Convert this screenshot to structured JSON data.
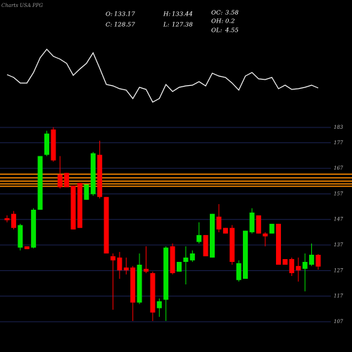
{
  "chart_data": {
    "type": "candlestick",
    "title": "Charts USA PPG",
    "info": [
      {
        "label": "O:",
        "value": 133.17
      },
      {
        "label": "C:",
        "value": 128.57
      },
      {
        "label": "H:",
        "value": 133.44
      },
      {
        "label": "L:",
        "value": 127.38
      },
      {
        "label": "OC:",
        "value": 3.58
      },
      {
        "label": "OH:",
        "value": 0.2
      },
      {
        "label": "OL:",
        "value": 4.55
      }
    ],
    "ylim": [
      107,
      183
    ],
    "yticks": [
      183,
      177,
      167,
      157,
      147,
      137,
      127,
      117,
      107
    ],
    "up_color": "#00e600",
    "down_color": "#ff0000",
    "grid_color": "#1c2456",
    "level_color": "#ff8c00",
    "levels": [
      164.7,
      163.3,
      162.0,
      160.9,
      160.0
    ],
    "candles": [
      [
        147.5,
        148.6,
        145.9,
        146.7
      ],
      [
        149.2,
        150.3,
        143.1,
        143.7
      ],
      [
        136.0,
        145.3,
        134.9,
        144.8
      ],
      [
        136.5,
        136.5,
        135.4,
        135.4
      ],
      [
        136.0,
        151.4,
        135.7,
        150.8
      ],
      [
        150.8,
        171.8,
        150.8,
        171.8
      ],
      [
        172.3,
        181.7,
        171.8,
        180.6
      ],
      [
        182.2,
        183.1,
        169.6,
        170.1
      ],
      [
        164.6,
        171.8,
        159.1,
        159.6
      ],
      [
        165.2,
        165.2,
        159.6,
        159.6
      ],
      [
        160.2,
        160.2,
        143.1,
        143.1
      ],
      [
        161.3,
        161.3,
        143.7,
        143.7
      ],
      [
        154.7,
        160.7,
        154.7,
        160.7
      ],
      [
        156.9,
        173.4,
        156.3,
        172.9
      ],
      [
        172.3,
        177.8,
        155.2,
        155.8
      ],
      [
        155.8,
        155.8,
        133.7,
        133.7
      ],
      [
        132.6,
        133.7,
        111.7,
        131.0
      ],
      [
        132.1,
        134.3,
        123.8,
        127.1
      ],
      [
        128.2,
        132.1,
        125.5,
        127.1
      ],
      [
        128.2,
        128.8,
        107.3,
        114.5
      ],
      [
        114.5,
        133.7,
        113.9,
        129.3
      ],
      [
        127.7,
        136.5,
        126.0,
        126.6
      ],
      [
        126.0,
        126.6,
        107.3,
        110.6
      ],
      [
        112.3,
        116.1,
        108.9,
        115.0
      ],
      [
        115.6,
        136.5,
        107.3,
        136.0
      ],
      [
        136.5,
        137.6,
        125.5,
        126.0
      ],
      [
        126.6,
        130.4,
        126.6,
        130.4
      ],
      [
        130.4,
        136.5,
        121.6,
        132.1
      ],
      [
        131.0,
        134.9,
        130.4,
        133.7
      ],
      [
        138.2,
        145.9,
        137.6,
        140.9
      ],
      [
        140.9,
        140.9,
        132.6,
        132.6
      ],
      [
        132.1,
        149.2,
        132.1,
        149.2
      ],
      [
        148.1,
        153.0,
        142.0,
        143.1
      ],
      [
        143.7,
        143.7,
        141.5,
        141.5
      ],
      [
        143.7,
        144.8,
        129.3,
        130.4
      ],
      [
        123.3,
        131.0,
        122.7,
        129.9
      ],
      [
        123.8,
        142.6,
        123.8,
        142.6
      ],
      [
        142.0,
        151.4,
        141.5,
        149.7
      ],
      [
        148.6,
        148.6,
        141.5,
        141.5
      ],
      [
        141.5,
        142.0,
        136.5,
        140.4
      ],
      [
        141.5,
        145.3,
        141.5,
        145.3
      ],
      [
        145.3,
        145.3,
        129.3,
        129.3
      ],
      [
        131.5,
        131.5,
        129.3,
        129.3
      ],
      [
        131.5,
        132.1,
        124.9,
        126.0
      ],
      [
        128.8,
        132.1,
        122.7,
        127.1
      ],
      [
        127.7,
        133.7,
        118.9,
        130.4
      ],
      [
        129.3,
        137.6,
        128.8,
        133.2
      ],
      [
        133.17,
        133.44,
        127.38,
        128.57
      ]
    ],
    "indicator": {
      "color": "#ffffff",
      "ylim": [
        0,
        100
      ],
      "values": [
        44,
        40,
        32,
        32,
        47,
        68,
        80,
        70,
        66,
        60,
        43,
        52,
        60,
        75,
        53,
        30,
        28,
        24,
        22,
        10,
        26,
        23,
        5,
        10,
        30,
        20,
        26,
        28,
        29,
        34,
        28,
        46,
        42,
        40,
        32,
        22,
        42,
        47,
        38,
        37,
        40,
        24,
        29,
        23,
        24,
        26,
        29,
        25
      ]
    }
  }
}
